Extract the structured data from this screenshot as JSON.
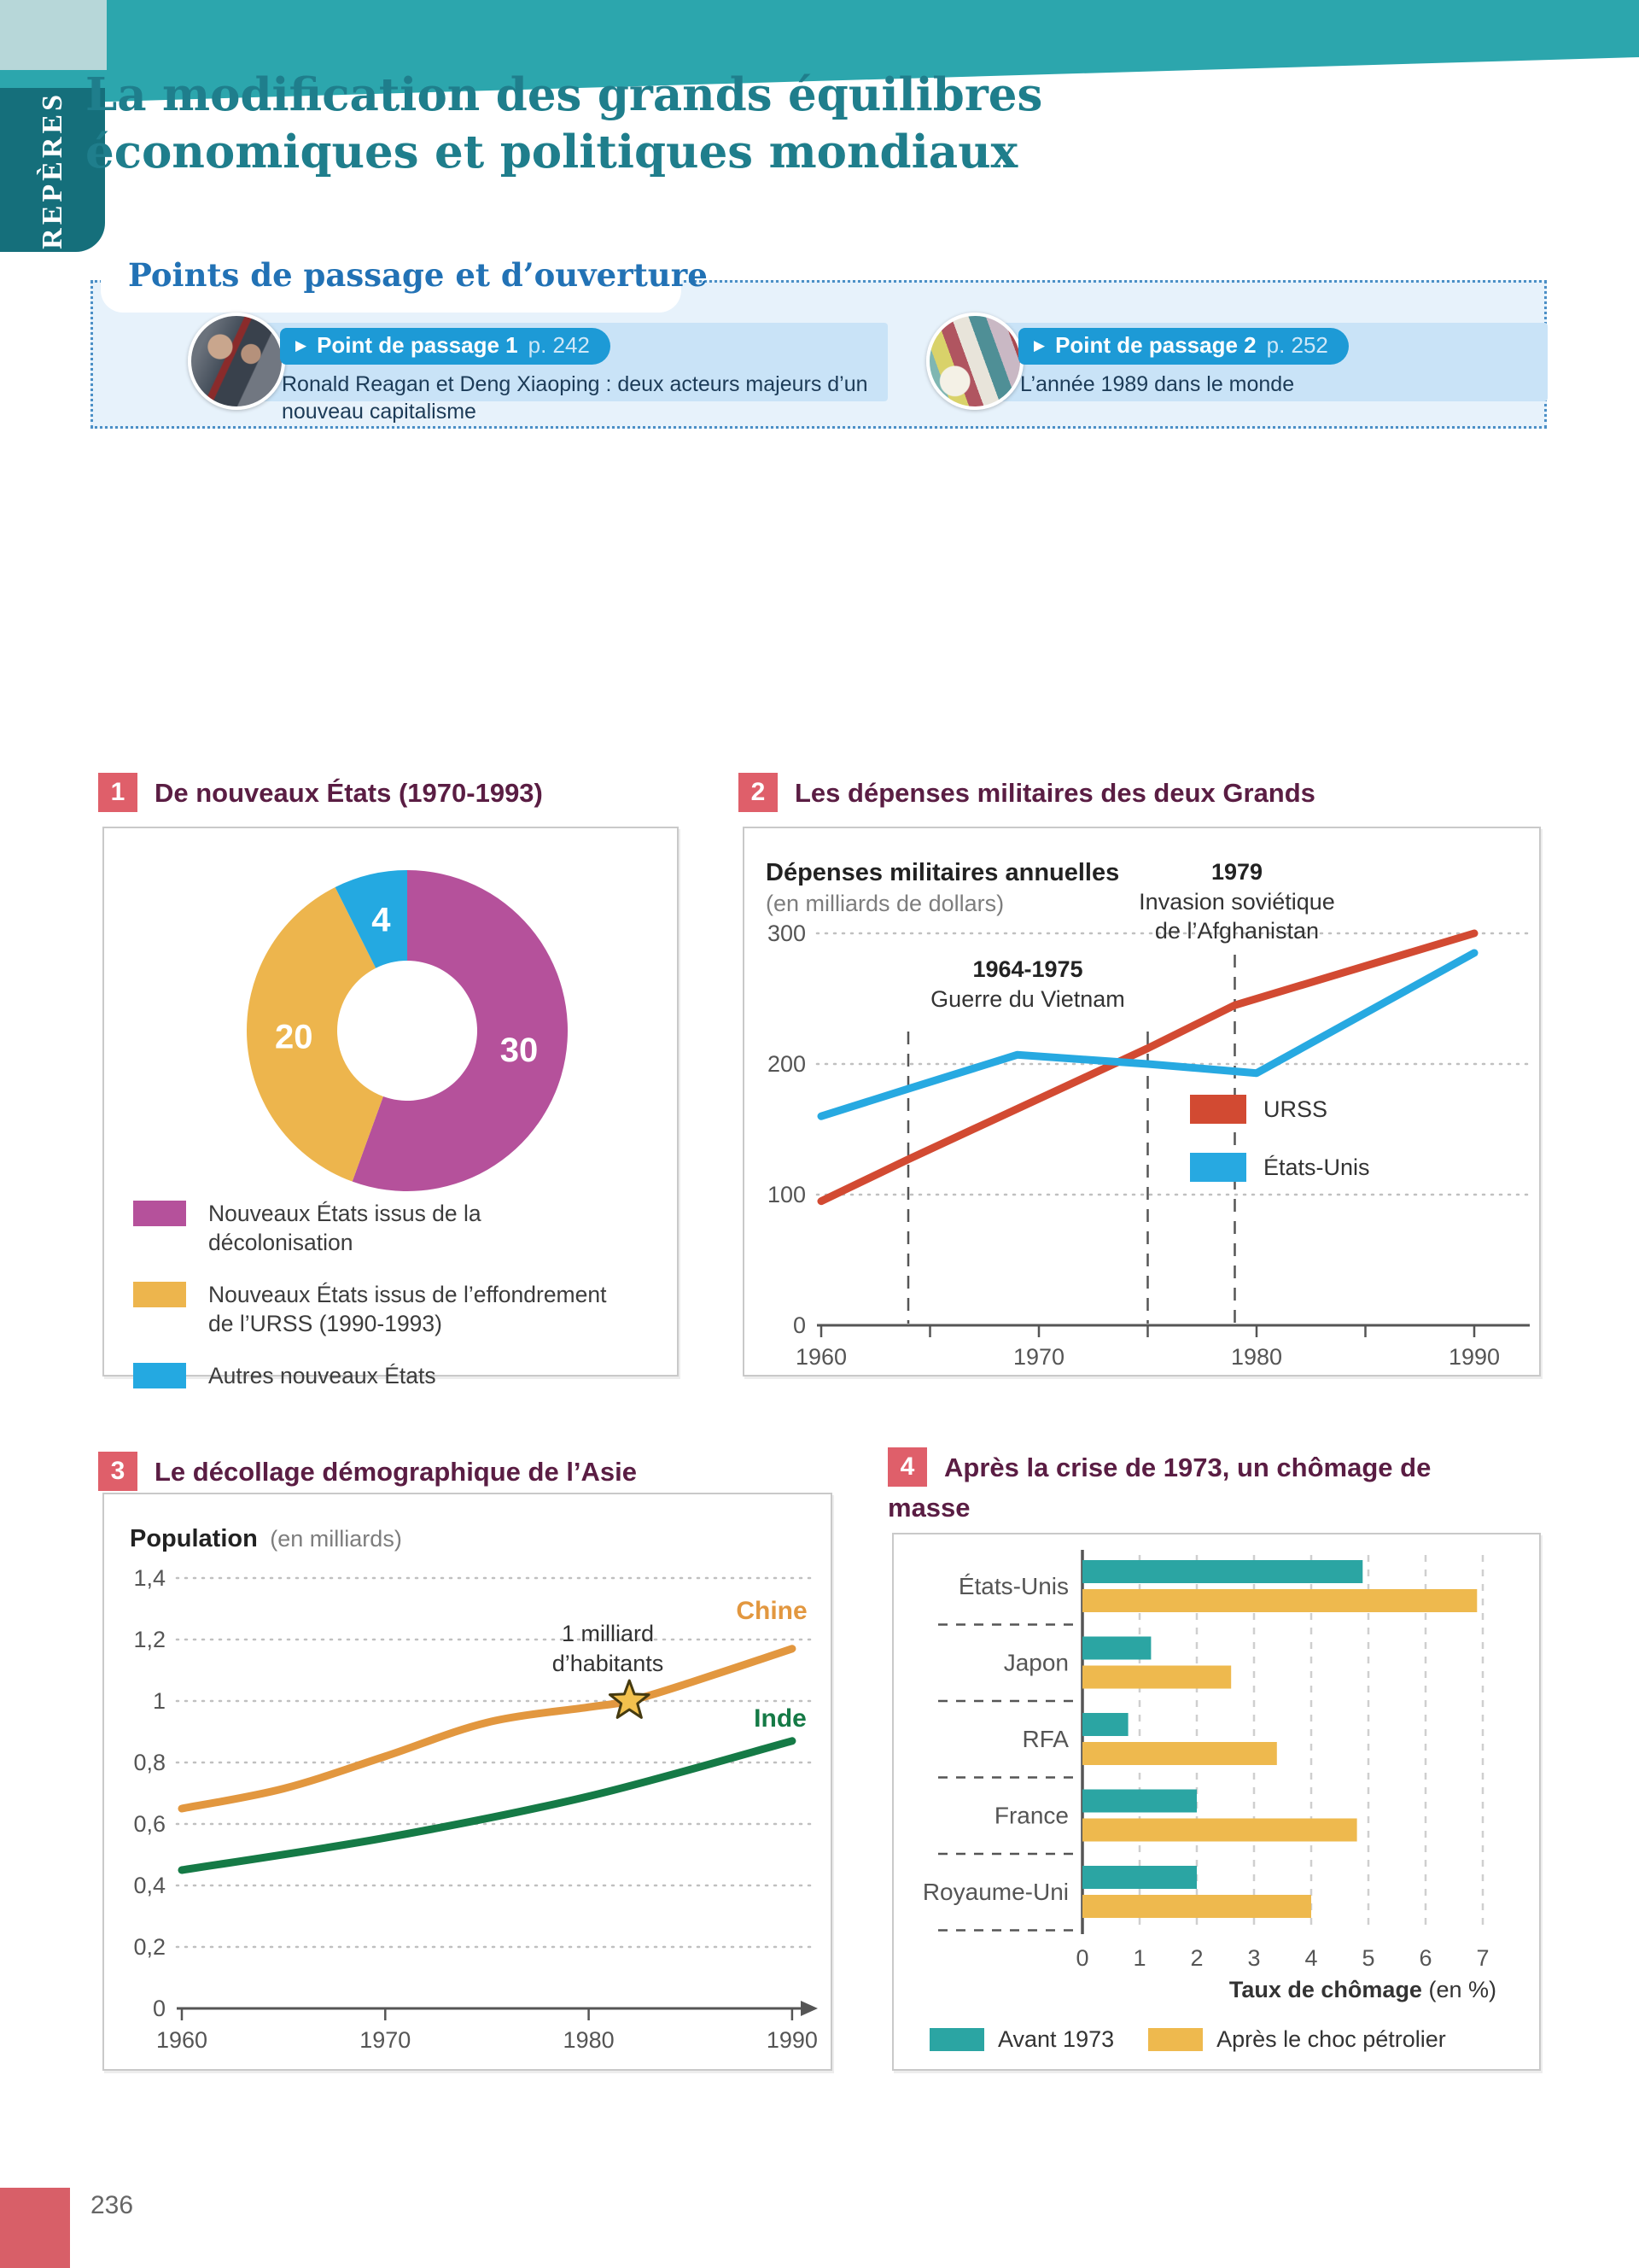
{
  "page": {
    "sidebar_label": "REPÈRES",
    "title_line1": "La modification des grands équilibres",
    "title_line2": "économiques et politiques mondiaux",
    "number": "236"
  },
  "points_section": {
    "title": "Points de passage et d’ouverture",
    "cards": [
      {
        "pill_label": "Point de passage 1",
        "pill_page": "p. 242",
        "description": "Ronald Reagan et Deng Xiaoping : deux acteurs majeurs d’un nouveau capitalisme"
      },
      {
        "pill_label": "Point de passage 2",
        "pill_page": "p. 252",
        "description": "L’année 1989 dans le monde"
      }
    ]
  },
  "panels": [
    {
      "number": "1",
      "title": "De nouveaux États (1970-1993)"
    },
    {
      "number": "2",
      "title": "Les dépenses militaires des deux Grands"
    },
    {
      "number": "3",
      "title": "Le décollage démographique de l’Asie"
    },
    {
      "number": "4",
      "title": "Après la crise de 1973, un chômage de masse"
    }
  ],
  "colors": {
    "banner_teal": "#2ca6ad",
    "sidebar_teal": "#156f7b",
    "title_teal": "#1f7e8c",
    "points_blue": "#2272b5",
    "pill_blue": "#1d9ad6",
    "panel_number_red": "#df5f6a",
    "panel_title_plum": "#5a1d43",
    "footer_red": "#d85f68"
  },
  "chart_data": [
    {
      "id": "new-states",
      "type": "pie",
      "style": "donut",
      "title": "De nouveaux États (1970-1993)",
      "labels": [
        "Nouveaux États issus de la décolonisation",
        "Nouveaux États issus de l’effondrement de l’URSS (1990-1993)",
        "Autres nouveaux États"
      ],
      "values": [
        30,
        20,
        4
      ],
      "colors": [
        "#b5519b",
        "#edb54d",
        "#24a9e1"
      ],
      "legend_position": "bottom"
    },
    {
      "id": "military-spending",
      "type": "line",
      "title": "Dépenses militaires annuelles",
      "subtitle": "(en milliards de dollars)",
      "xlim": [
        1960,
        1992
      ],
      "ylim": [
        0,
        320
      ],
      "y_ticks": [
        0,
        100,
        200,
        300
      ],
      "x_ticks": [
        1960,
        1970,
        1980,
        1990
      ],
      "x_minor_ticks": [
        1965,
        1975,
        1985
      ],
      "grid": "dotted-horizontal",
      "series": [
        {
          "name": "URSS",
          "color": "#d24a32",
          "points": [
            [
              1960,
              95
            ],
            [
              1964,
              127
            ],
            [
              1975,
              212
            ],
            [
              1979,
              245
            ],
            [
              1990,
              300
            ]
          ]
        },
        {
          "name": "États-Unis",
          "color": "#27a9e1",
          "points": [
            [
              1960,
              160
            ],
            [
              1964,
              181
            ],
            [
              1969,
              207
            ],
            [
              1975,
              200
            ],
            [
              1980,
              193
            ],
            [
              1990,
              285
            ]
          ]
        }
      ],
      "events": [
        {
          "x": 1964,
          "label_bold": "1964-1975",
          "label": "Guerre du Vietnam"
        },
        {
          "x": 1975
        },
        {
          "x": 1979,
          "label_bold": "1979",
          "label": "Invasion soviétique de l’Afghanistan"
        }
      ],
      "legend_position": "inside-right"
    },
    {
      "id": "asia-population",
      "type": "line",
      "title": "Population",
      "subtitle": "(en milliards)",
      "xlim": [
        1960,
        1992
      ],
      "ylim": [
        0,
        1.5
      ],
      "y_ticks": [
        0,
        0.2,
        0.4,
        0.6,
        0.8,
        1,
        1.2,
        1.4
      ],
      "y_tick_labels": [
        "0",
        "0,2",
        "0,4",
        "0,6",
        "0,8",
        "1",
        "1,2",
        "1,4"
      ],
      "x_ticks": [
        1960,
        1970,
        1980,
        1990
      ],
      "grid": "dotted-horizontal",
      "series": [
        {
          "name": "Chine",
          "color": "#e2973f",
          "points": [
            [
              1960,
              0.65
            ],
            [
              1965,
              0.715
            ],
            [
              1970,
              0.82
            ],
            [
              1975,
              0.93
            ],
            [
              1980,
              0.98
            ],
            [
              1982,
              1.0
            ],
            [
              1985,
              1.06
            ],
            [
              1990,
              1.17
            ]
          ]
        },
        {
          "name": "Inde",
          "color": "#157a46",
          "points": [
            [
              1960,
              0.45
            ],
            [
              1970,
              0.555
            ],
            [
              1980,
              0.69
            ],
            [
              1990,
              0.87
            ]
          ]
        }
      ],
      "marker": {
        "x": 1982,
        "y": 1.0,
        "shape": "star",
        "label_line1": "1 milliard",
        "label_line2": "d’habitants"
      }
    },
    {
      "id": "unemployment",
      "type": "bar",
      "orientation": "horizontal",
      "categories": [
        "États-Unis",
        "Japon",
        "RFA",
        "France",
        "Royaume-Uni"
      ],
      "series": [
        {
          "name": "Avant 1973",
          "color": "#2ba5a3",
          "values": [
            4.9,
            1.2,
            0.8,
            2.0,
            2.0
          ]
        },
        {
          "name": "Après le choc pétrolier",
          "color": "#eeb94e",
          "values": [
            6.9,
            2.6,
            3.4,
            4.8,
            4.0
          ]
        }
      ],
      "xlabel_bold": "Taux de chômage",
      "xlabel_unit": "(en %)",
      "xlim": [
        0,
        7
      ],
      "x_ticks": [
        0,
        1,
        2,
        3,
        4,
        5,
        6,
        7
      ],
      "grid": "dashed-vertical",
      "legend_position": "bottom"
    }
  ]
}
